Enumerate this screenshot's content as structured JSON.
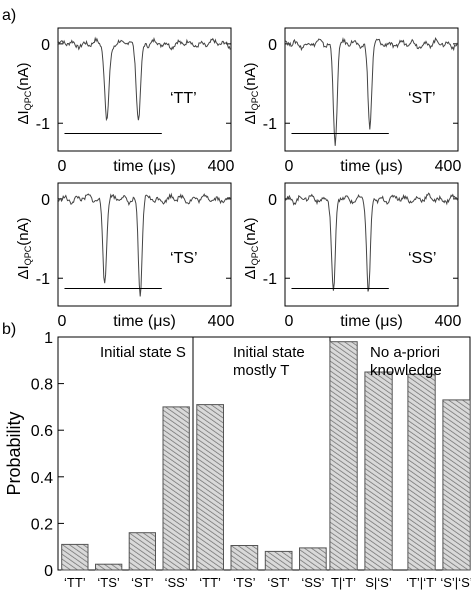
{
  "figure": {
    "panel_a_label": "a)",
    "panel_b_label": "b)"
  },
  "chart_data": [
    {
      "type": "line",
      "panel": "a",
      "label": "‘TT’",
      "xlabel": "time (μs)",
      "ylabel_main": "ΔI",
      "ylabel_sub": "QPC",
      "ylabel_unit": "(nA)",
      "x_ticks": [
        "0",
        "400"
      ],
      "y_ticks": [
        "0",
        "-1"
      ],
      "xlim": [
        0,
        400
      ],
      "ylim": [
        -1.35,
        0.2
      ],
      "threshold": -1.13,
      "threshold_x": [
        15,
        240
      ],
      "series": [
        {
          "dips": [
            {
              "x": 113,
              "depth": 0.96,
              "w": 7
            },
            {
              "x": 186,
              "depth": 0.92,
              "w": 7
            }
          ]
        }
      ]
    },
    {
      "type": "line",
      "panel": "a",
      "label": "‘ST’",
      "xlabel": "time (μs)",
      "ylabel_main": "ΔI",
      "ylabel_sub": "QPC",
      "ylabel_unit": "(nA)",
      "x_ticks": [
        "0",
        "400"
      ],
      "y_ticks": [
        "0",
        "-1"
      ],
      "xlim": [
        0,
        400
      ],
      "ylim": [
        -1.35,
        0.2
      ],
      "threshold": -1.13,
      "threshold_x": [
        15,
        240
      ],
      "series": [
        {
          "dips": [
            {
              "x": 116,
              "depth": 1.25,
              "w": 6
            },
            {
              "x": 196,
              "depth": 1.05,
              "w": 6
            }
          ]
        }
      ]
    },
    {
      "type": "line",
      "panel": "a",
      "label": "‘TS’",
      "xlabel": "time (μs)",
      "ylabel_main": "ΔI",
      "ylabel_sub": "QPC",
      "ylabel_unit": "(nA)",
      "x_ticks": [
        "0",
        "400"
      ],
      "y_ticks": [
        "0",
        "-1"
      ],
      "xlim": [
        0,
        400
      ],
      "ylim": [
        -1.35,
        0.2
      ],
      "threshold": -1.13,
      "threshold_x": [
        15,
        240
      ],
      "series": [
        {
          "dips": [
            {
              "x": 108,
              "depth": 1.05,
              "w": 6
            },
            {
              "x": 190,
              "depth": 1.22,
              "w": 6
            }
          ]
        }
      ]
    },
    {
      "type": "line",
      "panel": "a",
      "label": "‘SS’",
      "xlabel": "time (μs)",
      "ylabel_main": "ΔI",
      "ylabel_sub": "QPC",
      "ylabel_unit": "(nA)",
      "x_ticks": [
        "0",
        "400"
      ],
      "y_ticks": [
        "0",
        "-1"
      ],
      "xlim": [
        0,
        400
      ],
      "ylim": [
        -1.35,
        0.2
      ],
      "threshold": -1.13,
      "threshold_x": [
        15,
        240
      ],
      "series": [
        {
          "dips": [
            {
              "x": 112,
              "depth": 1.2,
              "w": 6
            },
            {
              "x": 193,
              "depth": 1.22,
              "w": 6
            }
          ]
        }
      ]
    },
    {
      "type": "bar",
      "panel": "b",
      "ylabel": "Probability",
      "ylim": [
        0,
        1
      ],
      "y_ticks": [
        "0",
        "0.2",
        "0.4",
        "0.6",
        "0.8",
        "1"
      ],
      "groups": [
        {
          "title_lines": [
            "Initial state S"
          ],
          "categories": [
            "‘TT’",
            "‘TS’",
            "‘ST’",
            "‘SS’"
          ],
          "values": [
            0.11,
            0.025,
            0.16,
            0.7
          ]
        },
        {
          "title_lines": [
            "Initial state",
            "mostly T"
          ],
          "categories": [
            "‘TT’",
            "‘TS’",
            "‘ST’",
            "‘SS’"
          ],
          "values": [
            0.71,
            0.105,
            0.08,
            0.095
          ]
        },
        {
          "title_lines": [
            "No a-priori",
            "knowledge"
          ],
          "categories": [
            "T|‘T’",
            "S|‘S’",
            "‘T’|‘T’",
            "‘S’|‘S’"
          ],
          "values": [
            0.98,
            0.85,
            0.84,
            0.73
          ]
        }
      ]
    }
  ]
}
